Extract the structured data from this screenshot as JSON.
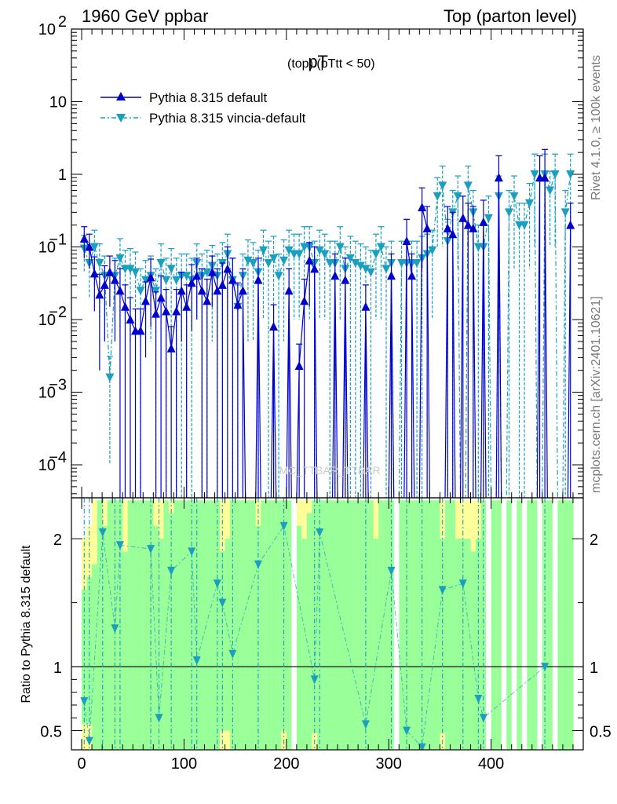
{
  "header": {
    "left_title": "1960 GeV ppbar",
    "right_title": "Top (parton level)",
    "plot_title": "pT",
    "plot_title_sub": "(top)  (pTtt < 50)",
    "side_rivet": "Rivet 4.1.0, ≥ 100k events",
    "side_mcplots": "mcplots.cern.ch [arXiv:2401.10621]",
    "watermark": "MC_TTBAR_TTBAR"
  },
  "legend": {
    "series1": "Pythia 8.315 default",
    "series2": "Pythia 8.315 vincia-default"
  },
  "ratio_ylabel": "Ratio to Pythia 8.315 default",
  "colors": {
    "series1": "#0000cc",
    "series2": "#1a9fbf",
    "band_green": "#99ff99",
    "band_yellow": "#ffff99"
  },
  "chart_data": [
    {
      "type": "line",
      "panel": "main",
      "yscale": "log",
      "xlim": [
        -10,
        490
      ],
      "ylim": [
        3e-05,
        100
      ],
      "ytick_labels": [
        {
          "pre": "10",
          "sup": "2",
          "v": 100
        },
        {
          "pre": "10",
          "sup": "",
          "v": 10
        },
        {
          "pre": "1",
          "sup": "",
          "v": 1
        },
        {
          "pre": "10",
          "sup": "−1",
          "v": 0.1
        },
        {
          "pre": "10",
          "sup": "−2",
          "v": 0.01
        },
        {
          "pre": "10",
          "sup": "−3",
          "v": 0.001
        },
        {
          "pre": "10",
          "sup": "−4",
          "v": 0.0001
        }
      ],
      "series": [
        {
          "name": "Pythia 8.315 default",
          "x": [
            2.5,
            7.5,
            12.5,
            17.5,
            22.5,
            27.5,
            32.5,
            37.5,
            42.5,
            47.5,
            52.5,
            57.5,
            62.5,
            67.5,
            72.5,
            77.5,
            82.5,
            87.5,
            92.5,
            97.5,
            102.5,
            107.5,
            112.5,
            117.5,
            122.5,
            127.5,
            132.5,
            137.5,
            142.5,
            147.5,
            152.5,
            157.5,
            172.5,
            187.5,
            202.5,
            212.5,
            217.5,
            222.5,
            227.5,
            247.5,
            257.5,
            277.5,
            302.5,
            317.5,
            322.5,
            332.5,
            337.5,
            357.5,
            362.5,
            372.5,
            377.5,
            382.5,
            392.5,
            407.5,
            447.5,
            452.5,
            477.5
          ],
          "y": [
            0.13,
            0.1,
            0.043,
            0.022,
            0.03,
            0.045,
            0.035,
            0.025,
            0.015,
            0.01,
            0.007,
            0.007,
            0.018,
            0.038,
            0.012,
            0.02,
            0.013,
            0.004,
            0.013,
            0.025,
            0.015,
            0.032,
            0.04,
            0.025,
            0.018,
            0.045,
            0.025,
            0.03,
            0.05,
            0.035,
            0.016,
            0.025,
            0.035,
            0.008,
            0.025,
            0.0023,
            0.018,
            0.065,
            0.05,
            0.04,
            0.035,
            0.015,
            0.04,
            0.12,
            0.04,
            0.35,
            0.18,
            0.18,
            0.15,
            0.25,
            0.2,
            0.18,
            0.22,
            0.9,
            0.9,
            0.9,
            0.2
          ],
          "err": [
            0.06,
            0.05,
            0.03,
            0.02,
            0.025,
            0.03,
            0.03,
            0.025,
            0.015,
            0.01,
            0.007,
            0.007,
            0.015,
            0.03,
            0.012,
            0.02,
            0.013,
            0.004,
            0.013,
            0.02,
            0.015,
            0.025,
            0.03,
            0.025,
            0.018,
            0.03,
            0.025,
            0.03,
            0.05,
            0.035,
            0.016,
            0.025,
            0.035,
            0.008,
            0.025,
            0.0023,
            0.018,
            0.05,
            0.05,
            0.04,
            0.035,
            0.015,
            0.04,
            0.12,
            0.04,
            0.3,
            0.18,
            0.18,
            0.15,
            0.25,
            0.2,
            0.18,
            0.22,
            0.9,
            0.9,
            1.3,
            0.2
          ]
        },
        {
          "name": "Pythia 8.315 vincia-default",
          "x": [
            2.5,
            7.5,
            12.5,
            17.5,
            22.5,
            27.5,
            32.5,
            37.5,
            42.5,
            47.5,
            52.5,
            57.5,
            62.5,
            67.5,
            72.5,
            77.5,
            82.5,
            87.5,
            92.5,
            97.5,
            102.5,
            107.5,
            112.5,
            117.5,
            122.5,
            127.5,
            132.5,
            137.5,
            142.5,
            147.5,
            152.5,
            157.5,
            162.5,
            167.5,
            172.5,
            177.5,
            182.5,
            187.5,
            192.5,
            197.5,
            202.5,
            207.5,
            212.5,
            217.5,
            222.5,
            227.5,
            232.5,
            237.5,
            242.5,
            247.5,
            252.5,
            257.5,
            262.5,
            267.5,
            272.5,
            277.5,
            282.5,
            287.5,
            292.5,
            297.5,
            302.5,
            312.5,
            317.5,
            322.5,
            327.5,
            332.5,
            337.5,
            342.5,
            347.5,
            352.5,
            357.5,
            362.5,
            367.5,
            377.5,
            382.5,
            387.5,
            392.5,
            397.5,
            407.5,
            417.5,
            422.5,
            427.5,
            432.5,
            437.5,
            442.5,
            452.5,
            457.5,
            462.5,
            472.5,
            477.5
          ],
          "y": [
            0.095,
            0.06,
            0.1,
            0.06,
            0.04,
            0.0016,
            0.04,
            0.07,
            0.05,
            0.05,
            0.045,
            0.025,
            0.035,
            0.04,
            0.025,
            0.06,
            0.035,
            0.05,
            0.035,
            0.04,
            0.04,
            0.035,
            0.06,
            0.04,
            0.045,
            0.055,
            0.04,
            0.06,
            0.08,
            0.035,
            0.015,
            0.04,
            0.065,
            0.06,
            0.045,
            0.09,
            0.06,
            0.07,
            0.04,
            0.065,
            0.09,
            0.08,
            0.08,
            0.1,
            0.1,
            0.06,
            0.09,
            0.08,
            0.06,
            0.06,
            0.1,
            0.05,
            0.07,
            0.06,
            0.055,
            0.05,
            0.045,
            0.08,
            0.1,
            0.05,
            0.06,
            0.06,
            0.06,
            0.06,
            0.06,
            0.07,
            0.08,
            0.09,
            0.5,
            0.7,
            0.12,
            0.3,
            0.5,
            0.7,
            0.3,
            0.1,
            0.1,
            0.25,
            0.5,
            0.3,
            0.5,
            0.2,
            0.2,
            0.4,
            1.0,
            1.0,
            0.6,
            1.0,
            0.3,
            1.0
          ],
          "err": [
            0.05,
            0.04,
            0.07,
            0.05,
            0.035,
            0.0015,
            0.03,
            0.06,
            0.04,
            0.045,
            0.04,
            0.025,
            0.03,
            0.035,
            0.025,
            0.05,
            0.035,
            0.045,
            0.035,
            0.04,
            0.04,
            0.035,
            0.05,
            0.04,
            0.045,
            0.05,
            0.04,
            0.055,
            0.07,
            0.035,
            0.015,
            0.04,
            0.06,
            0.055,
            0.045,
            0.08,
            0.06,
            0.07,
            0.04,
            0.06,
            0.08,
            0.07,
            0.07,
            0.09,
            0.09,
            0.06,
            0.08,
            0.07,
            0.06,
            0.06,
            0.09,
            0.05,
            0.07,
            0.06,
            0.055,
            0.05,
            0.045,
            0.07,
            0.09,
            0.05,
            0.06,
            0.06,
            0.06,
            0.06,
            0.06,
            0.07,
            0.07,
            0.08,
            0.4,
            0.6,
            0.12,
            0.3,
            0.45,
            0.6,
            0.3,
            0.1,
            0.1,
            0.25,
            0.45,
            0.3,
            0.45,
            0.2,
            0.2,
            0.35,
            0.9,
            0.9,
            0.5,
            0.9,
            0.3,
            0.9
          ]
        }
      ]
    },
    {
      "type": "line",
      "panel": "ratio",
      "xlim": [
        -10,
        490
      ],
      "ylim": [
        0.35,
        2.32
      ],
      "xtick_labels": [
        "0",
        "100",
        "200",
        "300",
        "400"
      ],
      "xticks": [
        0,
        100,
        200,
        300,
        400
      ],
      "ytick_labels_left": [
        "2",
        "1",
        "0.5"
      ],
      "ytick_labels_right": [
        "2",
        "1",
        "0.5"
      ],
      "yticks": [
        2,
        1,
        0.5
      ],
      "reference_line": 1,
      "band_bins_x": [
        0,
        5,
        10,
        15,
        20,
        25,
        30,
        35,
        40,
        45,
        50,
        55,
        60,
        65,
        70,
        75,
        80,
        85,
        90,
        95,
        100,
        105,
        110,
        115,
        120,
        125,
        130,
        135,
        140,
        145,
        150,
        155,
        160,
        165,
        170,
        175,
        180,
        185,
        190,
        195,
        200,
        205,
        210,
        215,
        220,
        225,
        230,
        235,
        240,
        245,
        250,
        255,
        260,
        265,
        270,
        275,
        280,
        285,
        290,
        295,
        300,
        310,
        315,
        320,
        325,
        330,
        335,
        340,
        345,
        350,
        355,
        360,
        365,
        370,
        375,
        380,
        385,
        390,
        395,
        400,
        405,
        410,
        415,
        420,
        425,
        430,
        435,
        440,
        445,
        450,
        455,
        460,
        465,
        470,
        475
      ],
      "band_green_hi": [
        1.6,
        1.7,
        1.8,
        2.3,
        2.1,
        2.3,
        2.3,
        2.3,
        1.9,
        2.3,
        2.3,
        2.3,
        2.3,
        2.3,
        2.1,
        2.0,
        2.3,
        2.2,
        2.3,
        2.3,
        2.3,
        2.3,
        2.3,
        2.3,
        2.3,
        2.3,
        2.3,
        1.9,
        2.0,
        2.3,
        2.3,
        2.3,
        2.3,
        2.3,
        2.1,
        2.3,
        2.3,
        2.3,
        2.3,
        2.3,
        2.3,
        2.3,
        2.1,
        2.0,
        2.2,
        2.3,
        2.3,
        2.3,
        2.3,
        2.3,
        2.3,
        2.3,
        2.3,
        2.3,
        2.3,
        2.3,
        2.3,
        2.0,
        2.3,
        2.3,
        2.3,
        2.3,
        2.3,
        2.3,
        2.3,
        2.3,
        2.3,
        2.3,
        2.3,
        2.0,
        2.3,
        2.3,
        2.0,
        2.0,
        2.0,
        1.9,
        2.0,
        2.3,
        2.3,
        2.3,
        2.3,
        2.3,
        2.3,
        2.3,
        2.3,
        2.3,
        2.3,
        2.3,
        2.3,
        2.3,
        2.3,
        2.3,
        2.3,
        2.3,
        2.3
      ],
      "band_green_lo": [
        0.35,
        0.35,
        0.35,
        0.35,
        0.35,
        0.35,
        0.35,
        0.35,
        0.35,
        0.35,
        0.35,
        0.35,
        0.35,
        0.35,
        0.35,
        0.35,
        0.35,
        0.35,
        0.35,
        0.35,
        0.35,
        0.35,
        0.35,
        0.35,
        0.35,
        0.35,
        0.35,
        0.35,
        0.35,
        0.35,
        0.35,
        0.35,
        0.35,
        0.35,
        0.35,
        0.35,
        0.35,
        0.35,
        0.35,
        0.35,
        0.35,
        0.35,
        0.35,
        0.35,
        0.35,
        0.35,
        0.35,
        0.35,
        0.35,
        0.35,
        0.35,
        0.35,
        0.35,
        0.35,
        0.35,
        0.35,
        0.35,
        0.35,
        0.35,
        0.35,
        0.35,
        0.35,
        0.35,
        0.35,
        0.35,
        0.35,
        0.35,
        0.35,
        0.35,
        0.35,
        0.35,
        0.35,
        0.35,
        0.35,
        0.35,
        0.35,
        0.35,
        0.35,
        0.35,
        0.35,
        0.35,
        0.35,
        0.35,
        0.35,
        0.35,
        0.35,
        0.35,
        0.35,
        0.35,
        0.35,
        0.35,
        0.35,
        0.35,
        0.35,
        0.35
      ],
      "band_yellow_hi": [
        2.0,
        2.1,
        2.3,
        2.3,
        2.3,
        2.3,
        2.3,
        2.3,
        2.3,
        2.3,
        2.3,
        2.3,
        2.3,
        2.3,
        2.3,
        2.3,
        2.3,
        2.3,
        2.3,
        2.3,
        2.3,
        2.3,
        2.3,
        2.3,
        2.3,
        2.3,
        2.3,
        2.3,
        2.3,
        2.3,
        2.3,
        2.3,
        2.3,
        2.3,
        2.3,
        2.3,
        2.3,
        2.3,
        2.3,
        2.3,
        2.3,
        2.3,
        2.3,
        2.3,
        2.3,
        2.3,
        2.3,
        2.3,
        2.3,
        2.3,
        2.3,
        2.3,
        2.3,
        2.3,
        2.3,
        2.3,
        2.3,
        2.3,
        2.3,
        2.3,
        2.3,
        2.3,
        2.3,
        2.3,
        2.3,
        2.3,
        2.3,
        2.3,
        2.3,
        2.3,
        2.3,
        2.3,
        2.3,
        2.3,
        2.3,
        2.3,
        2.3,
        2.3,
        2.3,
        2.3,
        2.3,
        2.3,
        2.3,
        2.3,
        2.3,
        2.3,
        2.3,
        2.3,
        2.3,
        2.3,
        2.3,
        2.3,
        2.3,
        2.3,
        2.3
      ],
      "gaps_x": [
        [
          205,
          210
        ],
        [
          305,
          310
        ],
        [
          395,
          400
        ],
        [
          410,
          415
        ],
        [
          420,
          425
        ],
        [
          430,
          435
        ],
        [
          445,
          450
        ],
        [
          460,
          465
        ]
      ],
      "ratio_series": {
        "name": "Pythia 8.315 vincia-default",
        "x": [
          2.5,
          7.5,
          20.5,
          32.5,
          37.5,
          67.5,
          75.5,
          87.5,
          107.5,
          112.5,
          132.5,
          137.5,
          147.5,
          172.5,
          197.5,
          227.5,
          232.5,
          277.5,
          302.5,
          317.5,
          332.5,
          352.5,
          372.5,
          387.5,
          392.5,
          452.5
        ],
        "y": [
          0.73,
          0.42,
          2.05,
          1.3,
          1.95,
          1.92,
          0.6,
          1.75,
          1.9,
          1.05,
          1.65,
          1.5,
          1.1,
          1.8,
          2.1,
          0.9,
          2.05,
          0.55,
          1.75,
          0.5,
          0.37,
          1.6,
          1.65,
          0.75,
          0.6,
          1.0
        ]
      }
    }
  ]
}
